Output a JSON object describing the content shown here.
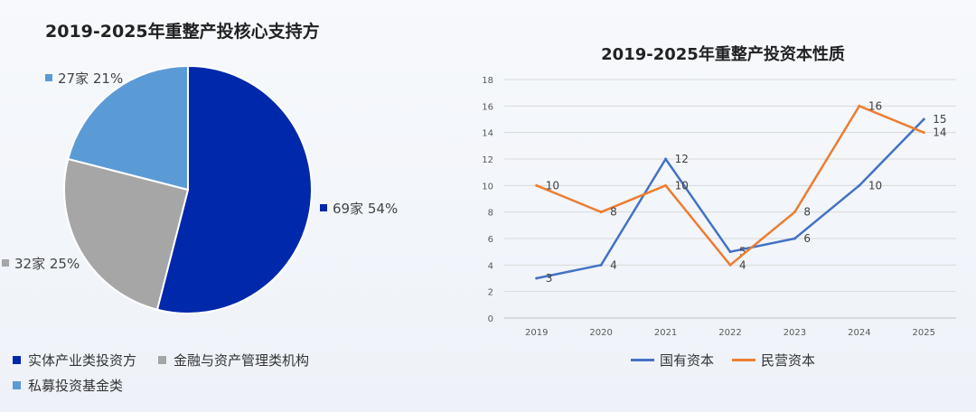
{
  "chart_data": [
    {
      "type": "pie",
      "title": "2019-2025年重整产投核心支持方",
      "slices": [
        {
          "name": "实体产业类投资方",
          "count_label": "69家",
          "value": 54,
          "pct_label": "54%",
          "color": "#0028AA"
        },
        {
          "name": "金融与资产管理类机构",
          "count_label": "32家",
          "value": 25,
          "pct_label": "25%",
          "color": "#A6A6A6"
        },
        {
          "name": "私募投资基金类",
          "count_label": "27家",
          "value": 21,
          "pct_label": "21%",
          "color": "#5B9BD5"
        }
      ],
      "legend_position": "bottom"
    },
    {
      "type": "line",
      "title": "2019-2025年重整产投资本性质",
      "categories": [
        "2019",
        "2020",
        "2021",
        "2022",
        "2023",
        "2024",
        "2025"
      ],
      "series": [
        {
          "name": "国有资本",
          "values": [
            3,
            4,
            12,
            5,
            6,
            10,
            15
          ],
          "color": "#4472C4"
        },
        {
          "name": "民营资本",
          "values": [
            10,
            8,
            10,
            4,
            8,
            16,
            14
          ],
          "color": "#ED7D31"
        }
      ],
      "ylim": [
        0,
        18
      ],
      "yticks": [
        "0",
        "2",
        "4",
        "6",
        "8",
        "10",
        "12",
        "14",
        "16",
        "18"
      ],
      "grid": true,
      "legend_position": "bottom"
    }
  ]
}
